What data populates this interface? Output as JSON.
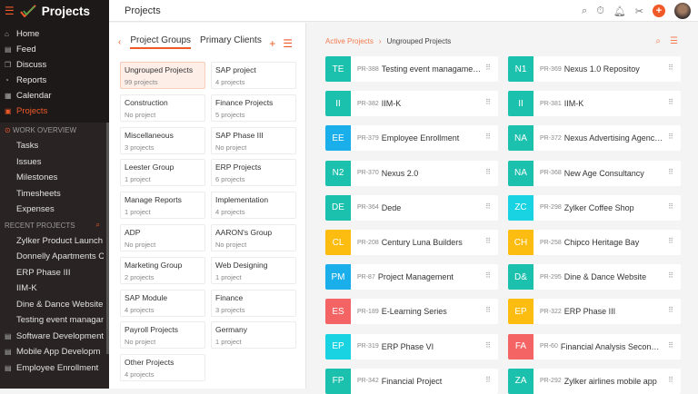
{
  "app": {
    "title": "Projects",
    "page_title": "Projects"
  },
  "sidebar": {
    "nav": [
      {
        "label": "Home",
        "icon": "home-icon",
        "g": "⌂"
      },
      {
        "label": "Feed",
        "icon": "feed-icon",
        "g": "▤"
      },
      {
        "label": "Discuss",
        "icon": "discuss-icon",
        "g": "❐"
      },
      {
        "label": "Reports",
        "icon": "reports-icon",
        "g": "◔"
      },
      {
        "label": "Calendar",
        "icon": "calendar-icon",
        "g": "▦"
      },
      {
        "label": "Projects",
        "icon": "projects-icon",
        "g": "▣",
        "active": true
      }
    ],
    "work_overview": "WORK OVERVIEW",
    "work_items": [
      "Tasks",
      "Issues",
      "Milestones",
      "Timesheets",
      "Expenses"
    ],
    "recent_label": "RECENT PROJECTS",
    "recent": [
      "Zylker Product Launch",
      "Donnelly Apartments C",
      "ERP Phase III",
      "IIM-K",
      "Dine & Dance Website",
      "Testing event managan"
    ],
    "other": [
      "Software Development",
      "Mobile App Developm",
      "Employee Enrollment"
    ]
  },
  "groups": {
    "tabs": [
      "Project Groups",
      "Primary Clients"
    ],
    "items": [
      {
        "name": "Ungrouped Projects",
        "count": "99 projects",
        "selected": true
      },
      {
        "name": "SAP project",
        "count": "4 projects"
      },
      {
        "name": "Construction",
        "count": "No project"
      },
      {
        "name": "Finance Projects",
        "count": "5 projects"
      },
      {
        "name": "Miscellaneous",
        "count": "3 projects"
      },
      {
        "name": "SAP Phase III",
        "count": "No project"
      },
      {
        "name": "Leester Group",
        "count": "1 project"
      },
      {
        "name": "ERP Projects",
        "count": "6 projects"
      },
      {
        "name": "Manage Reports",
        "count": "1 project"
      },
      {
        "name": "Implementation",
        "count": "4 projects"
      },
      {
        "name": "ADP",
        "count": "No project"
      },
      {
        "name": "AARON's Group",
        "count": "No project"
      },
      {
        "name": "Marketing Group",
        "count": "2 projects"
      },
      {
        "name": "Web Designing",
        "count": "1 project"
      },
      {
        "name": "SAP Module",
        "count": "4 projects"
      },
      {
        "name": "Finance",
        "count": "3 projects"
      },
      {
        "name": "Payroll Projects",
        "count": "No project"
      },
      {
        "name": "Germany",
        "count": "1 project"
      },
      {
        "name": "Other Projects",
        "count": "4 projects"
      }
    ]
  },
  "breadcrumb": {
    "parent": "Active Projects",
    "current": "Ungrouped Projects"
  },
  "colors": {
    "accent": "#f05a28",
    "teal": "#1cc1ae",
    "blue": "#1aaeea",
    "cyan": "#19d3e3",
    "yellow": "#fdbd10",
    "red": "#f56464"
  },
  "projects": [
    {
      "ab": "TE",
      "id": "PR-388",
      "name": "Testing event managament...",
      "c": "teal"
    },
    {
      "ab": "N1",
      "id": "PR-369",
      "name": "Nexus 1.0 Repositoy",
      "c": "teal"
    },
    {
      "ab": "II",
      "id": "PR-382",
      "name": "IIM-K",
      "c": "teal"
    },
    {
      "ab": "II",
      "id": "PR-381",
      "name": "IIM-K",
      "c": "teal"
    },
    {
      "ab": "EE",
      "id": "PR-379",
      "name": "Employee Enrollment",
      "c": "blue"
    },
    {
      "ab": "NA",
      "id": "PR-372",
      "name": "Nexus Advertising Agency ...",
      "c": "teal"
    },
    {
      "ab": "N2",
      "id": "PR-370",
      "name": "Nexus 2.0",
      "c": "teal"
    },
    {
      "ab": "NA",
      "id": "PR-368",
      "name": "New Age Consultancy",
      "c": "teal"
    },
    {
      "ab": "DE",
      "id": "PR-364",
      "name": "Dede",
      "c": "teal"
    },
    {
      "ab": "ZC",
      "id": "PR-298",
      "name": "Zylker Coffee Shop",
      "c": "cyan"
    },
    {
      "ab": "CL",
      "id": "PR-208",
      "name": "Century Luna Builders",
      "c": "yellow"
    },
    {
      "ab": "CH",
      "id": "PR-258",
      "name": "Chipco Heritage Bay",
      "c": "yellow"
    },
    {
      "ab": "PM",
      "id": "PR-87",
      "name": "Project Management",
      "c": "blue"
    },
    {
      "ab": "D&",
      "id": "PR-295",
      "name": "Dine & Dance Website",
      "c": "teal"
    },
    {
      "ab": "ES",
      "id": "PR-189",
      "name": "E-Learning Series",
      "c": "red"
    },
    {
      "ab": "EP",
      "id": "PR-322",
      "name": "ERP Phase III",
      "c": "yellow"
    },
    {
      "ab": "EP",
      "id": "PR-319",
      "name": "ERP Phase VI",
      "c": "cyan"
    },
    {
      "ab": "FA",
      "id": "PR-60",
      "name": "Financial Analysis Second q...",
      "c": "red"
    },
    {
      "ab": "FP",
      "id": "PR-342",
      "name": "Financial Project",
      "c": "teal"
    },
    {
      "ab": "ZA",
      "id": "PR-292",
      "name": "Zylker airlines mobile app",
      "c": "teal"
    }
  ]
}
